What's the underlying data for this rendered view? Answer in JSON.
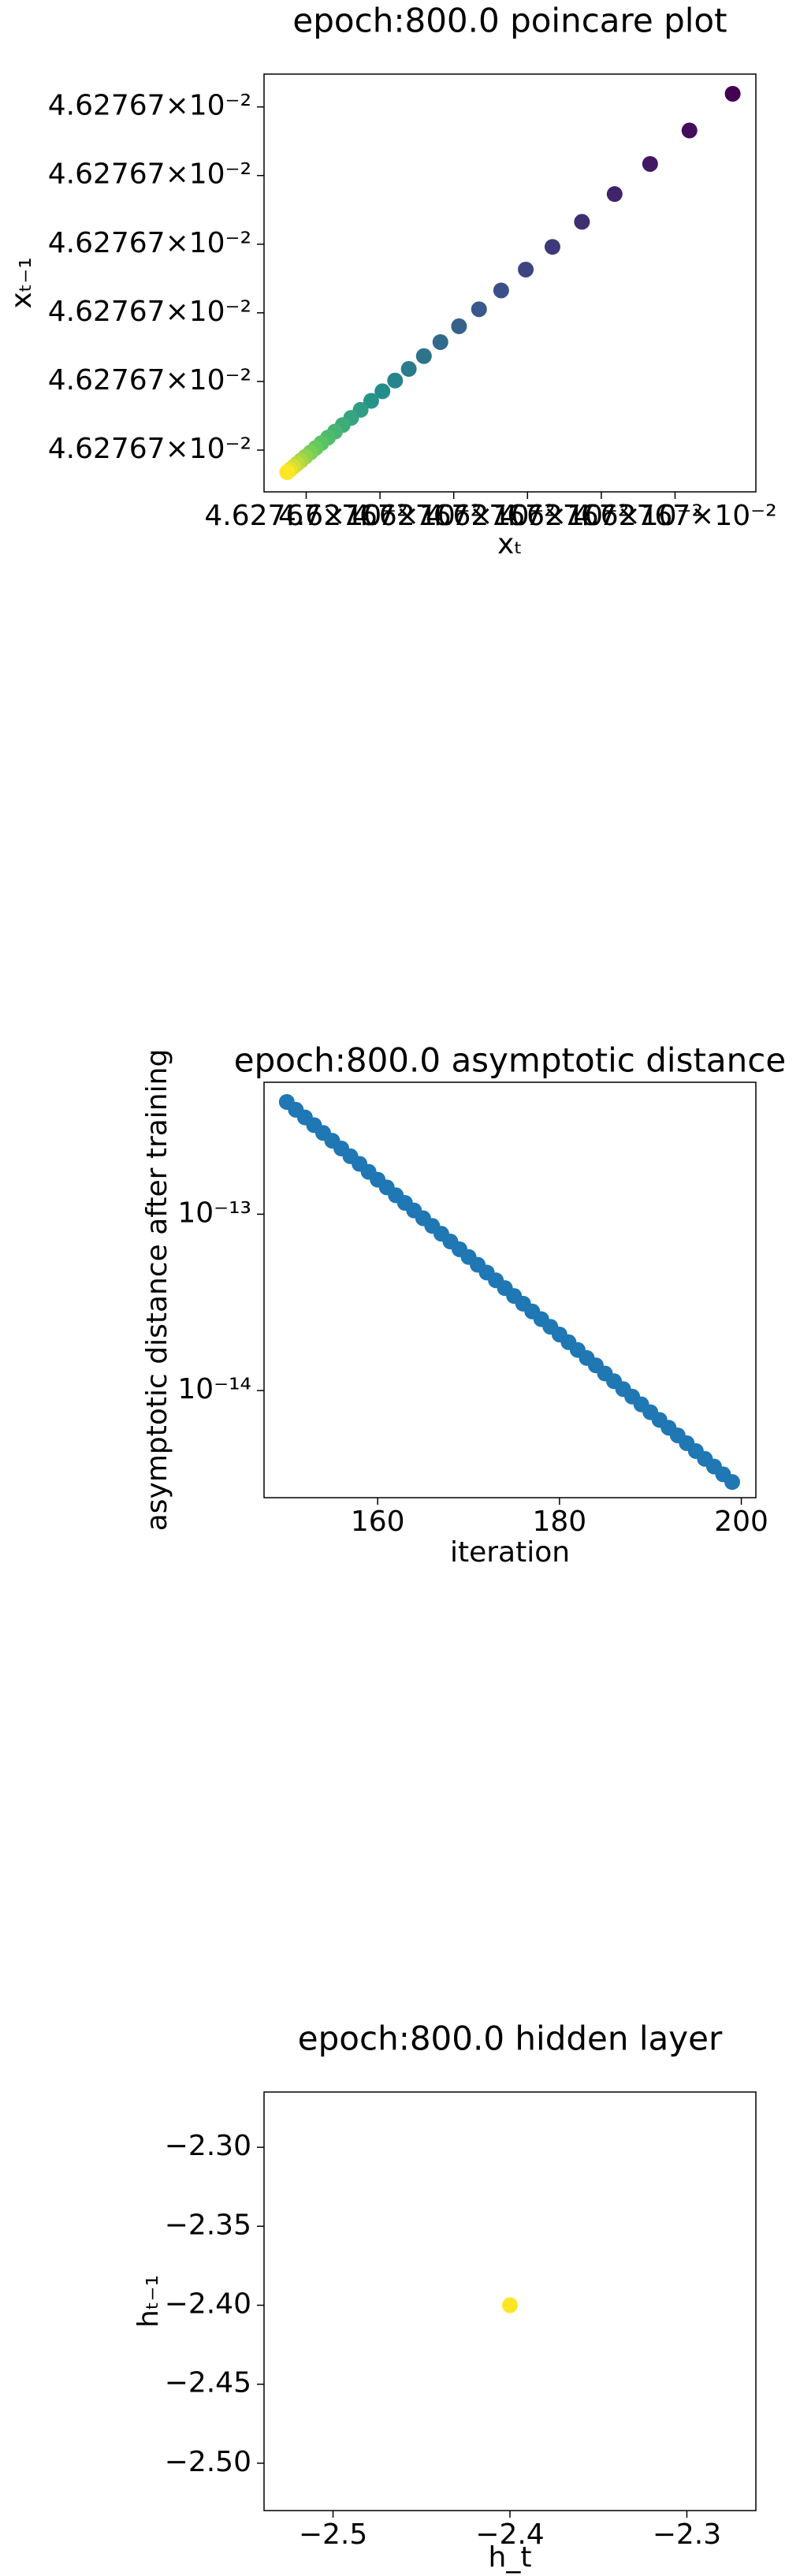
{
  "chart_data": [
    {
      "type": "scatter",
      "title": "epoch:800.0 poincare plot",
      "xlabel": "xₜ",
      "ylabel": "xₜ₋₁",
      "x": [
        0.0462767001134,
        0.0462767001011,
        0.0462767000899,
        0.0462767000798,
        0.0462767000705,
        0.0462767000621,
        0.0462767000545,
        0.0462767000475,
        0.0462767000412,
        0.0462767000355,
        0.0462767000302,
        0.0462767000255,
        0.0462767000212,
        0.0462767000173,
        0.0462767000137,
        0.0462767000105,
        0.0462767000075,
        0.0462767000048,
        0.0462767000024,
        0.0462767000002,
        0.0462766999982,
        0.0462766999963,
        0.0462766999947,
        0.0462766999932,
        0.0462766999918,
        0.0462766999905,
        0.0462766999894,
        0.0462766999884,
        0.0462766999874,
        0.0462766999866
      ],
      "values": [
        0.0462767001134,
        0.0462767001011,
        0.0462767000899,
        0.0462767000798,
        0.0462767000705,
        0.0462767000621,
        0.0462767000545,
        0.0462767000475,
        0.0462767000412,
        0.0462767000355,
        0.0462767000302,
        0.0462767000255,
        0.0462767000212,
        0.0462767000173,
        0.0462767000137,
        0.0462767000105,
        0.0462767000075,
        0.0462767000048,
        0.0462767000024,
        0.0462767000002,
        0.0462766999982,
        0.0462766999963,
        0.0462766999947,
        0.0462766999932,
        0.0462766999918,
        0.0462766999905,
        0.0462766999894,
        0.0462766999884,
        0.0462766999874,
        0.0462766999866
      ],
      "colormap": [
        "#440154",
        "#3b528b",
        "#21918c",
        "#5ec962",
        "#fde725"
      ],
      "xlim": [
        0.04627669998,
        0.04627670012
      ],
      "ylim": [
        0.04627669998,
        0.04627670012
      ],
      "xticks": [
        {
          "value": 0.046276699992,
          "label": "4.62767×10⁻²"
        },
        {
          "value": 0.046276700013,
          "label": "4.62767×10⁻²"
        },
        {
          "value": 0.046276700034,
          "label": "4.62767×10⁻²"
        },
        {
          "value": 0.046276700055,
          "label": "4.62767×10⁻²"
        },
        {
          "value": 0.046276700076,
          "label": "4.62767×10⁻²"
        },
        {
          "value": 0.046276700097,
          "label": "4.62767×10⁻²"
        }
      ],
      "yticks": [
        {
          "value": 0.046276699994,
          "label": "4.62767×10⁻²"
        },
        {
          "value": 0.046276700017,
          "label": "4.62767×10⁻²"
        },
        {
          "value": 0.04627670004,
          "label": "4.62767×10⁻²"
        },
        {
          "value": 0.046276700063,
          "label": "4.62767×10⁻²"
        },
        {
          "value": 0.046276700086,
          "label": "4.62767×10⁻²"
        },
        {
          "value": 0.046276700109,
          "label": "4.62767×10⁻²"
        }
      ]
    },
    {
      "type": "scatter",
      "title": "epoch:800.0 asymptotic distance",
      "xlabel": "iteration",
      "ylabel": "asymptotic distance after training",
      "x": [
        150,
        151,
        152,
        153,
        154,
        155,
        156,
        157,
        158,
        159,
        160,
        161,
        162,
        163,
        164,
        165,
        166,
        167,
        168,
        169,
        170,
        171,
        172,
        173,
        174,
        175,
        176,
        177,
        178,
        179,
        180,
        181,
        182,
        183,
        184,
        185,
        186,
        187,
        188,
        189,
        190,
        191,
        192,
        193,
        194,
        195,
        196,
        197,
        198,
        199
      ],
      "values": [
        4.33e-13,
        3.91e-13,
        3.54e-13,
        3.2e-13,
        2.89e-13,
        2.61e-13,
        2.36e-13,
        2.13e-13,
        1.93e-13,
        1.74e-13,
        1.57e-13,
        1.42e-13,
        1.28e-13,
        1.16e-13,
        1.05e-13,
        9.49e-14,
        8.58e-14,
        7.75e-14,
        7e-14,
        6.33e-14,
        5.72e-14,
        5.17e-14,
        4.67e-14,
        4.22e-14,
        3.81e-14,
        3.44e-14,
        3.11e-14,
        2.81e-14,
        2.54e-14,
        2.3e-14,
        2.08e-14,
        1.88e-14,
        1.7e-14,
        1.53e-14,
        1.39e-14,
        1.25e-14,
        1.13e-14,
        1.02e-14,
        9.24e-15,
        8.35e-15,
        7.54e-15,
        6.82e-15,
        6.16e-15,
        5.57e-15,
        5.03e-15,
        4.54e-15,
        4.1e-15,
        3.71e-15,
        3.35e-15,
        3.03e-15
      ],
      "color": "#1f77b4",
      "yscale": "log",
      "xlim": [
        147.5,
        201.6
      ],
      "ylim": [
        2.47e-15,
        5.6e-13
      ],
      "xticks": [
        160,
        180,
        200
      ],
      "yticks": [
        {
          "value": 1e-13,
          "label": "10⁻¹³"
        },
        {
          "value": 1e-14,
          "label": "10⁻¹⁴"
        }
      ]
    },
    {
      "type": "scatter",
      "title": "epoch:800.0 hidden layer",
      "xlabel": "h_t",
      "ylabel": "hₜ₋₁",
      "x": [
        -2.4
      ],
      "values": [
        -2.4
      ],
      "color": "#fde725",
      "xlim": [
        -2.539,
        -2.261
      ],
      "ylim": [
        -2.53,
        -2.265
      ],
      "xticks": [
        {
          "value": -2.5,
          "label": "−2.5"
        },
        {
          "value": -2.4,
          "label": "−2.4"
        },
        {
          "value": -2.3,
          "label": "−2.3"
        }
      ],
      "yticks": [
        {
          "value": -2.3,
          "label": "−2.30"
        },
        {
          "value": -2.35,
          "label": "−2.35"
        },
        {
          "value": -2.4,
          "label": "−2.40"
        },
        {
          "value": -2.45,
          "label": "−2.45"
        },
        {
          "value": -2.5,
          "label": "−2.50"
        }
      ]
    }
  ]
}
